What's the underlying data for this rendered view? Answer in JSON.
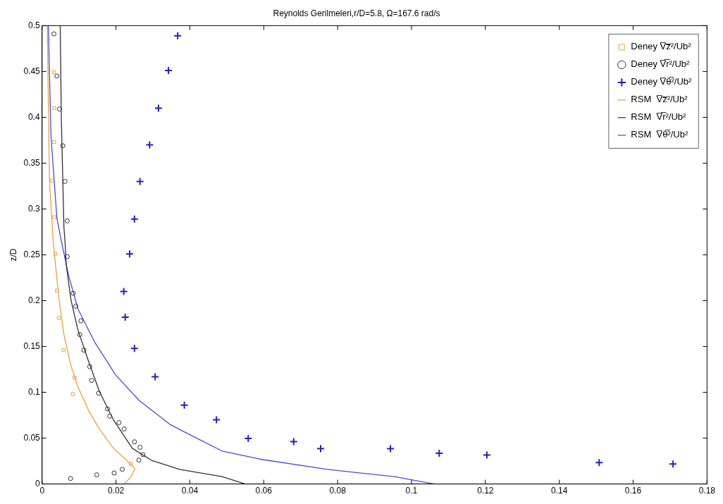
{
  "chart_data": {
    "type": "scatter",
    "title": "Reynolds Gerilmeleri,r/D=5.8, Ω=167.6 rad/s",
    "ylabel": "z/D",
    "xlim": [
      0,
      0.18
    ],
    "xticks": [
      0,
      0.02,
      0.04,
      0.06,
      0.08,
      0.1,
      0.12,
      0.14,
      0.16,
      0.18
    ],
    "ylim": [
      0,
      0.5
    ],
    "yticks": [
      0,
      0.05,
      0.1,
      0.15,
      0.2,
      0.25,
      0.3,
      0.35,
      0.4,
      0.45,
      0.5
    ],
    "grid": false,
    "legend": "top right",
    "series": [
      {
        "name": "Deney V̅z̅²/Ub²",
        "marker": "square",
        "color": "#e8a040",
        "x": [
          0.0032,
          0.0033,
          0.0033,
          0.0027,
          0.0033,
          0.0036,
          0.004,
          0.0045,
          0.0058,
          0.0088,
          0.0083,
          0.024
        ],
        "values": [
          0.449,
          0.41,
          0.373,
          0.331,
          0.291,
          0.251,
          0.211,
          0.181,
          0.146,
          0.116,
          0.098,
          0.022
        ]
      },
      {
        "name": "Deney V̅r̅²/Ub²",
        "marker": "circle",
        "color": "#303030",
        "x": [
          0.0032,
          0.004,
          0.0047,
          0.0056,
          0.0062,
          0.0068,
          0.0068,
          0.0084,
          0.0091,
          0.0105,
          0.0102,
          0.0113,
          0.0129,
          0.0134,
          0.0153,
          0.0177,
          0.0183,
          0.0208,
          0.0222,
          0.025,
          0.0265,
          0.0273,
          0.0262,
          0.0217,
          0.0195,
          0.0148,
          0.0077
        ],
        "values": [
          0.491,
          0.445,
          0.409,
          0.369,
          0.33,
          0.287,
          0.248,
          0.208,
          0.194,
          0.178,
          0.163,
          0.146,
          0.128,
          0.113,
          0.099,
          0.082,
          0.074,
          0.067,
          0.06,
          0.046,
          0.04,
          0.032,
          0.026,
          0.016,
          0.012,
          0.01,
          0.006
        ]
      },
      {
        "name": "Deney V̅θ̅²/Ub²",
        "marker": "cross",
        "color": "#2020c0",
        "x": [
          0.0367,
          0.0342,
          0.0315,
          0.0291,
          0.0265,
          0.025,
          0.0237,
          0.0221,
          0.0225,
          0.025,
          0.0306,
          0.0385,
          0.0472,
          0.0558,
          0.0681,
          0.0754,
          0.0943,
          0.1075,
          0.1204,
          0.1508,
          0.1708
        ],
        "values": [
          0.489,
          0.451,
          0.41,
          0.37,
          0.33,
          0.289,
          0.251,
          0.21,
          0.182,
          0.148,
          0.117,
          0.086,
          0.07,
          0.0496,
          0.0463,
          0.0386,
          0.0386,
          0.0335,
          0.0316,
          0.0233,
          0.0218
        ]
      },
      {
        "name": "RSM  V̅z̅²/Ub²",
        "type": "line",
        "color": "#e8a040",
        "x": [
          0.0014,
          0.002,
          0.003,
          0.0036,
          0.0046,
          0.0059,
          0.0078,
          0.0097,
          0.0126,
          0.0155,
          0.0193,
          0.0231,
          0.0251,
          0.0241,
          0.0222
        ],
        "values": [
          0.5,
          0.33,
          0.265,
          0.24,
          0.201,
          0.163,
          0.129,
          0.106,
          0.08,
          0.06,
          0.039,
          0.025,
          0.017,
          0.008,
          0
        ]
      },
      {
        "name": "RSM  V̅r̅²/Ub²",
        "type": "line",
        "color": "#303030",
        "x": [
          0.0049,
          0.0052,
          0.0059,
          0.0062,
          0.0065,
          0.0078,
          0.0097,
          0.0123,
          0.0155,
          0.0193,
          0.0244,
          0.0295,
          0.0372,
          0.0487,
          0.055
        ],
        "values": [
          0.5,
          0.4,
          0.28,
          0.265,
          0.24,
          0.201,
          0.168,
          0.137,
          0.101,
          0.07,
          0.039,
          0.026,
          0.016,
          0.008,
          0
        ]
      },
      {
        "name": "RSM  V̅θ̅²/Ub²",
        "type": "line",
        "color": "#4848e0",
        "x": [
          0.0017,
          0.0024,
          0.004,
          0.0052,
          0.0072,
          0.0097,
          0.0142,
          0.0199,
          0.0263,
          0.0346,
          0.0423,
          0.0487,
          0.0591,
          0.0772,
          0.0953,
          0.1062
        ],
        "values": [
          0.5,
          0.38,
          0.29,
          0.265,
          0.227,
          0.191,
          0.155,
          0.119,
          0.091,
          0.065,
          0.049,
          0.036,
          0.027,
          0.016,
          0.008,
          0
        ]
      }
    ]
  }
}
